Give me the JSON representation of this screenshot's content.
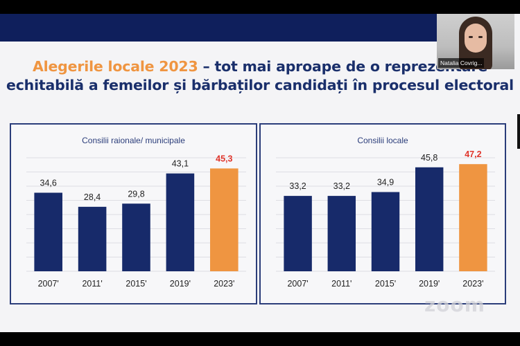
{
  "slide": {
    "title_highlight": "Alegerile locale 2023",
    "title_rest_line1": " – tot mai aproape de o reprezentare",
    "title_line2": "echitabilă a femeilor și bărbaților candidați în procesul electoral"
  },
  "video": {
    "participant_name": "Natalia Covrig..."
  },
  "watermark": "zoom",
  "colors": {
    "bar": "#172a6a",
    "highlight": "#ef9541",
    "highlight_text": "#e0352b",
    "title": "#1a2f6b"
  },
  "chart_data": [
    {
      "type": "bar",
      "title": "Consilii raionale/ municipale",
      "categories": [
        "2007'",
        "2011'",
        "2015'",
        "2019'",
        "2023'"
      ],
      "values": [
        34.6,
        28.4,
        29.8,
        43.1,
        45.3
      ],
      "labels": [
        "34,6",
        "28,4",
        "29,8",
        "43,1",
        "45,3"
      ],
      "highlight_index": 4,
      "ylim": [
        0,
        50
      ],
      "grid": true
    },
    {
      "type": "bar",
      "title": "Consilii locale",
      "categories": [
        "2007'",
        "2011'",
        "2015'",
        "2019'",
        "2023'"
      ],
      "values": [
        33.2,
        33.2,
        34.9,
        45.8,
        47.2
      ],
      "labels": [
        "33,2",
        "33,2",
        "34,9",
        "45,8",
        "47,2"
      ],
      "highlight_index": 4,
      "ylim": [
        0,
        50
      ],
      "grid": true
    }
  ]
}
